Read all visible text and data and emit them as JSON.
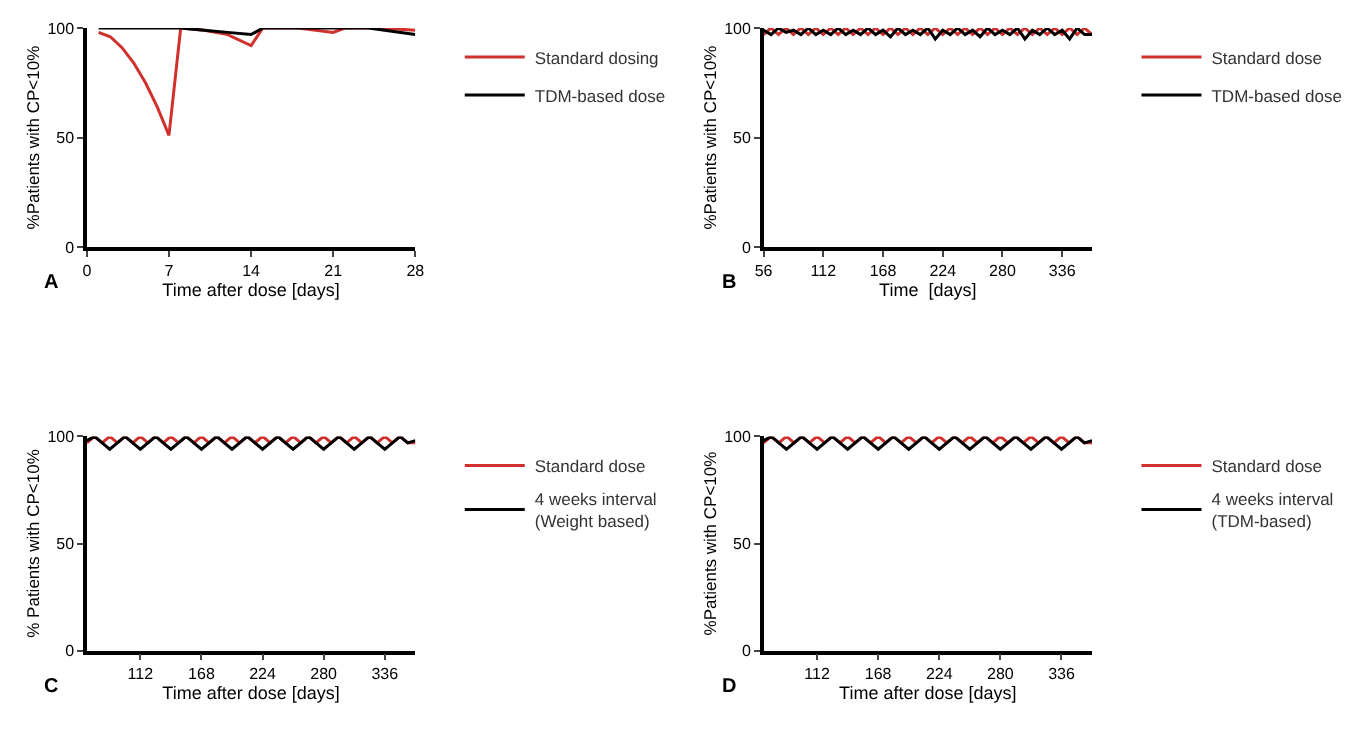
{
  "chart_data": [
    {
      "type": "line",
      "xlabel": "Time after dose [days]",
      "ylabel": "%Patients with CP<10%",
      "annotations": [
        "A"
      ],
      "xlim": [
        0,
        28
      ],
      "xticks": [
        0,
        7,
        14,
        21,
        28
      ],
      "ylim": [
        0,
        100
      ],
      "yticks": [
        0,
        50,
        100
      ],
      "legend": "right",
      "marker": "none",
      "line_style": "solid",
      "series": [
        {
          "name": "Standard dosing",
          "color": "#d0312d",
          "x": [
            1,
            2,
            3,
            4,
            5,
            6,
            7,
            8,
            10,
            12,
            14,
            15,
            18,
            21,
            22,
            25,
            28
          ],
          "values": [
            98,
            96,
            91,
            84,
            75,
            64,
            51,
            100,
            99,
            97,
            92,
            100,
            100,
            98,
            100,
            100,
            99
          ]
        },
        {
          "name": "TDM-based dose",
          "color": "#000000",
          "x": [
            1,
            4,
            8,
            10,
            12,
            14,
            15,
            18,
            21,
            24,
            28
          ],
          "values": [
            100,
            100,
            100,
            99,
            98,
            97,
            100,
            100,
            100,
            100,
            97
          ]
        }
      ]
    },
    {
      "type": "line",
      "xlabel": "Time  [days]",
      "ylabel": "%Patients with CP<10%",
      "annotations": [
        "B"
      ],
      "xlim": [
        56,
        364
      ],
      "xticks": [
        56,
        112,
        168,
        224,
        280,
        336
      ],
      "ylim": [
        0,
        100
      ],
      "yticks": [
        0,
        50,
        100
      ],
      "legend": "right",
      "marker": "none",
      "line_style": "solid",
      "series": [
        {
          "name": "Standard dose",
          "color": "#d0312d",
          "x": [
            56,
            63,
            70,
            77,
            84,
            91,
            98,
            105,
            112,
            119,
            126,
            133,
            140,
            147,
            154,
            161,
            168,
            175,
            182,
            189,
            196,
            203,
            210,
            217,
            224,
            231,
            238,
            245,
            252,
            259,
            266,
            273,
            280,
            287,
            294,
            301,
            308,
            315,
            322,
            329,
            336,
            343,
            350,
            357,
            364
          ],
          "values": [
            97,
            100,
            97,
            100,
            97,
            100,
            97,
            100,
            97,
            100,
            97,
            100,
            97,
            100,
            97,
            100,
            97,
            100,
            97,
            100,
            97,
            100,
            97,
            100,
            97,
            100,
            97,
            100,
            97,
            100,
            97,
            100,
            97,
            100,
            97,
            100,
            97,
            100,
            97,
            100,
            97,
            100,
            97,
            100,
            97
          ]
        },
        {
          "name": "TDM-based dose",
          "color": "#000000",
          "x": [
            56,
            63,
            70,
            77,
            84,
            91,
            98,
            105,
            112,
            119,
            126,
            133,
            140,
            147,
            154,
            161,
            168,
            175,
            182,
            189,
            196,
            203,
            210,
            217,
            224,
            231,
            238,
            245,
            252,
            259,
            266,
            273,
            280,
            287,
            294,
            301,
            308,
            315,
            322,
            329,
            336,
            343,
            350,
            357,
            364
          ],
          "values": [
            99,
            97,
            100,
            98,
            99,
            97,
            100,
            97,
            99,
            97,
            100,
            97,
            99,
            97,
            100,
            97,
            99,
            96,
            100,
            97,
            99,
            97,
            100,
            95,
            99,
            97,
            100,
            97,
            99,
            96,
            100,
            97,
            99,
            97,
            100,
            95,
            99,
            97,
            100,
            97,
            99,
            95,
            100,
            97,
            97
          ]
        }
      ]
    },
    {
      "type": "line",
      "xlabel": "Time after dose [days]",
      "ylabel": "% Patients with CP<10%",
      "annotations": [
        "C"
      ],
      "xlim": [
        63,
        364
      ],
      "xticks": [
        112,
        168,
        224,
        280,
        336
      ],
      "ylim": [
        0,
        100
      ],
      "yticks": [
        0,
        50,
        100
      ],
      "legend": "right",
      "marker": "none",
      "line_style": "solid",
      "series": [
        {
          "name": "Standard dose",
          "color": "#d0312d",
          "x": [
            63,
            70,
            77,
            84,
            91,
            98,
            105,
            112,
            119,
            126,
            133,
            140,
            147,
            154,
            161,
            168,
            175,
            182,
            189,
            196,
            203,
            210,
            217,
            224,
            231,
            238,
            245,
            252,
            259,
            266,
            273,
            280,
            287,
            294,
            301,
            308,
            315,
            322,
            329,
            336,
            343,
            350,
            357,
            364
          ],
          "values": [
            97,
            100,
            97,
            100,
            97,
            100,
            97,
            100,
            97,
            100,
            97,
            100,
            97,
            100,
            97,
            100,
            97,
            100,
            97,
            100,
            97,
            100,
            97,
            100,
            97,
            100,
            97,
            100,
            97,
            100,
            97,
            100,
            97,
            100,
            97,
            100,
            97,
            100,
            97,
            100,
            97,
            100,
            97,
            97
          ]
        },
        {
          "name": "4 weeks interval\n(Weight based)",
          "color": "#000000",
          "x": [
            63,
            70,
            77,
            84,
            91,
            98,
            105,
            112,
            119,
            126,
            133,
            140,
            147,
            154,
            161,
            168,
            175,
            182,
            189,
            196,
            203,
            210,
            217,
            224,
            231,
            238,
            245,
            252,
            259,
            266,
            273,
            280,
            287,
            294,
            301,
            308,
            315,
            322,
            329,
            336,
            343,
            350,
            357,
            364
          ],
          "values": [
            98,
            100,
            97,
            94,
            97,
            100,
            97,
            94,
            97,
            100,
            97,
            94,
            97,
            100,
            97,
            94,
            97,
            100,
            97,
            94,
            97,
            100,
            97,
            94,
            97,
            100,
            97,
            94,
            97,
            100,
            97,
            94,
            97,
            100,
            97,
            94,
            97,
            100,
            97,
            94,
            97,
            100,
            97,
            98
          ]
        }
      ]
    },
    {
      "type": "line",
      "xlabel": "Time after dose [days]",
      "ylabel": "%Patients with CP<10%",
      "annotations": [
        "D"
      ],
      "xlim": [
        63,
        364
      ],
      "xticks": [
        112,
        168,
        224,
        280,
        336
      ],
      "ylim": [
        0,
        100
      ],
      "yticks": [
        0,
        50,
        100
      ],
      "legend": "right",
      "marker": "none",
      "line_style": "solid",
      "series": [
        {
          "name": "Standard dose",
          "color": "#d0312d",
          "x": [
            63,
            70,
            77,
            84,
            91,
            98,
            105,
            112,
            119,
            126,
            133,
            140,
            147,
            154,
            161,
            168,
            175,
            182,
            189,
            196,
            203,
            210,
            217,
            224,
            231,
            238,
            245,
            252,
            259,
            266,
            273,
            280,
            287,
            294,
            301,
            308,
            315,
            322,
            329,
            336,
            343,
            350,
            357,
            364
          ],
          "values": [
            97,
            100,
            97,
            100,
            97,
            100,
            97,
            100,
            97,
            100,
            97,
            100,
            97,
            100,
            97,
            100,
            97,
            100,
            97,
            100,
            97,
            100,
            97,
            100,
            97,
            100,
            97,
            100,
            97,
            100,
            97,
            100,
            97,
            100,
            97,
            100,
            97,
            100,
            97,
            100,
            97,
            100,
            97,
            97
          ]
        },
        {
          "name": "4 weeks interval\n(TDM-based)",
          "color": "#000000",
          "x": [
            63,
            70,
            77,
            84,
            91,
            98,
            105,
            112,
            119,
            126,
            133,
            140,
            147,
            154,
            161,
            168,
            175,
            182,
            189,
            196,
            203,
            210,
            217,
            224,
            231,
            238,
            245,
            252,
            259,
            266,
            273,
            280,
            287,
            294,
            301,
            308,
            315,
            322,
            329,
            336,
            343,
            350,
            357,
            364
          ],
          "values": [
            98,
            100,
            97,
            94,
            97,
            100,
            97,
            94,
            97,
            100,
            97,
            94,
            97,
            100,
            97,
            94,
            97,
            100,
            97,
            94,
            97,
            100,
            97,
            94,
            97,
            100,
            97,
            94,
            97,
            100,
            97,
            94,
            97,
            100,
            97,
            94,
            97,
            100,
            97,
            94,
            97,
            100,
            97,
            98
          ]
        }
      ]
    }
  ]
}
